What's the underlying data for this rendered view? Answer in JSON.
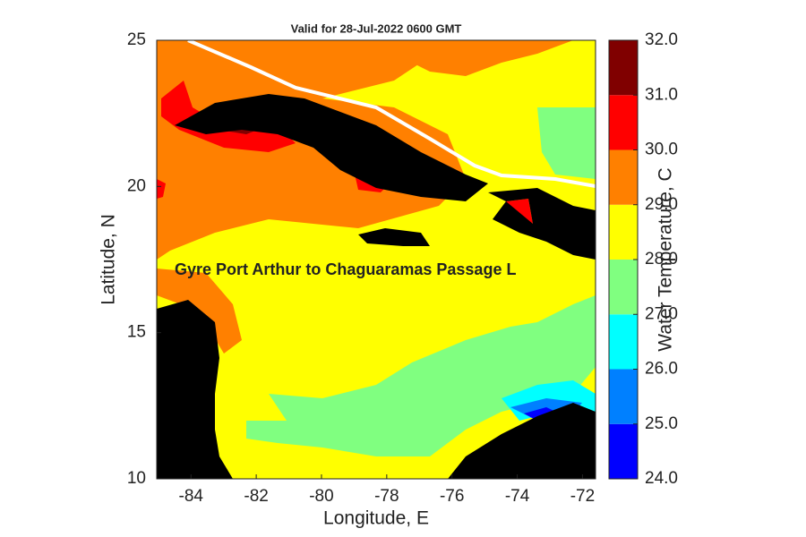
{
  "chart_data": {
    "type": "contour-map",
    "title": "Valid for 28-Jul-2022 0600 GMT",
    "x_label": "Longitude, E",
    "y_label": "Latitude, N",
    "annotation": "Gyre Port Arthur to Chaguaramas Passage L",
    "xlim": [
      -85.05,
      -71.6
    ],
    "ylim": [
      10,
      25
    ],
    "xticks": [
      -84,
      -82,
      -80,
      -78,
      -76,
      -74,
      -72
    ],
    "yticks": [
      10,
      15,
      20,
      25
    ],
    "colorbar": {
      "label": "Water Temperature, C",
      "lim": [
        24,
        32
      ],
      "ticks": [
        {
          "value": 24,
          "label": "24.0"
        },
        {
          "value": 25,
          "label": "25.0"
        },
        {
          "value": 26,
          "label": "26.0"
        },
        {
          "value": 27,
          "label": "27.0"
        },
        {
          "value": 28,
          "label": "28.0"
        },
        {
          "value": 29,
          "label": "29.0"
        },
        {
          "value": 30,
          "label": "30.0"
        },
        {
          "value": 31,
          "label": "31.0"
        },
        {
          "value": 32,
          "label": "32.0"
        }
      ],
      "colors": [
        "#0000ff",
        "#0080ff",
        "#00ffff",
        "#80ff80",
        "#ffff00",
        "#ff8000",
        "#ff0000",
        "#800000"
      ]
    }
  }
}
